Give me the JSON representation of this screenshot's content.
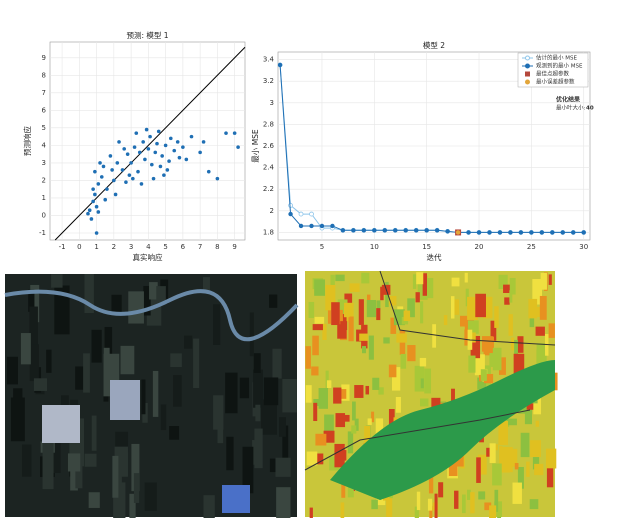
{
  "chart_data": [
    {
      "type": "scatter",
      "title": "预测: 模型 1",
      "x_label": "真实响应",
      "y_label": "预测响应",
      "color": "#1f6fb4",
      "identity_line": true,
      "grid": true,
      "xlim": [
        -1.7,
        9.6
      ],
      "ylim": [
        -1.4,
        9.9
      ],
      "xticks": [
        -1,
        0,
        1,
        2,
        3,
        4,
        5,
        6,
        7,
        8,
        9
      ],
      "yticks": [
        -1,
        0,
        1,
        2,
        3,
        4,
        5,
        6,
        7,
        8,
        9
      ],
      "x": [
        0.6,
        0.8,
        0.9,
        1.0,
        0.7,
        1.1,
        0.9,
        1.2,
        0.8,
        1.0,
        1.3,
        1.5,
        1.6,
        1.4,
        2.0,
        2.2,
        2.5,
        2.8,
        3.0,
        3.2,
        3.4,
        3.5,
        3.7,
        3.8,
        4.0,
        4.1,
        4.2,
        4.4,
        4.5,
        4.6,
        4.8,
        5.0,
        5.1,
        5.3,
        5.5,
        5.7,
        6.0,
        2.3,
        2.7,
        3.1,
        3.6,
        4.3,
        4.9,
        5.2,
        6.5,
        7.0,
        7.5,
        8.0,
        8.5,
        9.0,
        9.2,
        7.2,
        6.2,
        1.8,
        2.1,
        0.5,
        1.1,
        1.9,
        3.3,
        3.9,
        4.7,
        5.8,
        2.6,
        2.9
      ],
      "values": [
        0.3,
        0.8,
        1.2,
        0.5,
        -0.2,
        1.8,
        2.5,
        3.0,
        1.5,
        -1.0,
        2.2,
        0.9,
        1.5,
        2.8,
        2.0,
        3.0,
        2.6,
        3.5,
        3.0,
        3.9,
        2.5,
        3.6,
        4.2,
        3.2,
        3.8,
        4.5,
        2.9,
        3.6,
        4.1,
        4.8,
        3.4,
        4.0,
        2.6,
        4.4,
        3.7,
        4.2,
        3.9,
        4.2,
        1.9,
        2.1,
        1.8,
        2.1,
        2.3,
        3.1,
        4.5,
        3.6,
        2.5,
        2.1,
        4.7,
        4.7,
        3.9,
        4.2,
        3.2,
        3.4,
        1.2,
        0.1,
        0.2,
        2.6,
        4.7,
        4.9,
        2.8,
        3.3,
        3.8,
        2.3
      ]
    },
    {
      "type": "line",
      "title": "模型 2",
      "x_label": "迭代",
      "y_label": "最小 MSE",
      "grid": true,
      "xlim": [
        0.8,
        30.6
      ],
      "ylim": [
        1.73,
        3.47
      ],
      "xticks": [
        5,
        10,
        15,
        20,
        25,
        30
      ],
      "yticks": [
        1.8,
        2,
        2.2,
        2.4,
        2.6,
        2.8,
        3,
        3.2,
        3.4
      ],
      "legend": "upper right",
      "x": [
        1,
        2,
        3,
        4,
        5,
        6,
        7,
        8,
        9,
        10,
        11,
        12,
        13,
        14,
        15,
        16,
        17,
        18,
        19,
        20,
        21,
        22,
        23,
        24,
        25,
        26,
        27,
        28,
        29,
        30
      ],
      "series": [
        {
          "name": "估计的最小 MSE",
          "color": "#8ec5ea",
          "marker": "open-circle",
          "values": [
            3.35,
            2.05,
            1.97,
            1.97,
            1.84,
            1.84,
            1.82,
            1.82,
            1.82,
            1.82,
            1.82,
            1.82,
            1.82,
            1.82,
            1.82,
            1.82,
            1.81,
            1.8,
            1.8,
            1.8,
            1.8,
            1.8,
            1.8,
            1.8,
            1.8,
            1.8,
            1.8,
            1.8,
            1.8,
            1.8
          ]
        },
        {
          "name": "观测到的最小 MSE",
          "color": "#1f6fb4",
          "marker": "circle",
          "values": [
            3.35,
            1.97,
            1.86,
            1.86,
            1.86,
            1.86,
            1.82,
            1.82,
            1.82,
            1.82,
            1.82,
            1.82,
            1.82,
            1.82,
            1.82,
            1.82,
            1.81,
            1.8,
            1.8,
            1.8,
            1.8,
            1.8,
            1.8,
            1.8,
            1.8,
            1.8,
            1.8,
            1.8,
            1.8,
            1.8
          ]
        },
        {
          "name": "最佳点超参数",
          "color": "#b5483c",
          "marker": "square",
          "x": [
            18
          ],
          "values": [
            1.8
          ]
        },
        {
          "name": "最小误差超参数",
          "color": "#e3a63a",
          "marker": "circle",
          "x": [
            18
          ],
          "values": [
            1.8
          ]
        }
      ],
      "annotation": {
        "title": "优化结果",
        "label": "最小叶大小:",
        "value": 40
      }
    }
  ]
}
